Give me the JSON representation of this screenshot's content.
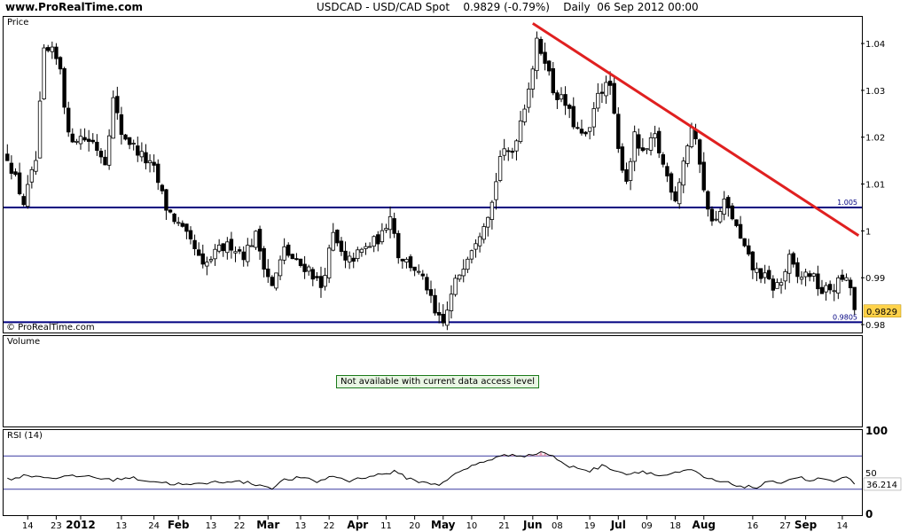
{
  "header": {
    "site": "www.ProRealTime.com",
    "symbol": "USDCAD - USD/CAD Spot",
    "price_change": "0.9829 (-0.79%)",
    "period": "Daily",
    "datetime": "06 Sep 2012 00:00"
  },
  "panels": {
    "price_label": "Price",
    "watermark": "© ProRealTime.com",
    "volume_label": "Volume",
    "volume_notice": "Not available with current data access level",
    "rsi_label": "RSI (14)"
  },
  "colors": {
    "candle": "#000000",
    "support_line": "#000080",
    "trend_line": "#e02020",
    "rsi_line": "#000000",
    "rsi_band": "#3a3aa0",
    "rsi_overbought_fill": "#e8a0b8",
    "last_price_bg": "#ffd24a"
  },
  "chart_data": [
    {
      "type": "candlestick",
      "title": "USDCAD - USD/CAD Spot",
      "y_ticks": [
        "1.04",
        "1.03",
        "1.02",
        "1.01",
        "1",
        "0.99",
        "0.98"
      ],
      "y_tick_values": [
        1.04,
        1.03,
        1.02,
        1.01,
        1.0,
        0.99,
        0.98
      ],
      "ylim": [
        0.9785,
        1.0455
      ],
      "x_ticks": [
        "14",
        "23",
        "2012",
        "13",
        "24",
        "Feb",
        "13",
        "22",
        "Mar",
        "13",
        "22",
        "Apr",
        "11",
        "20",
        "May",
        "10",
        "21",
        "Jun",
        "08",
        "19",
        "Jul",
        "09",
        "18",
        "Aug",
        "16",
        "27",
        "Sep",
        "14"
      ],
      "x_tick_index": [
        5,
        12,
        18,
        28,
        36,
        42,
        50,
        57,
        64,
        72,
        79,
        86,
        93,
        100,
        107,
        114,
        122,
        129,
        135,
        143,
        150,
        157,
        164,
        171,
        183,
        191,
        196,
        205
      ],
      "num_bars": 209,
      "horizontal_lines": [
        {
          "value": 1.005,
          "label": "1.005"
        },
        {
          "value": 0.9805,
          "label": "0.9805"
        }
      ],
      "trend_line": {
        "from": {
          "index": 129,
          "value": 1.0443
        },
        "to": {
          "index": 209,
          "value": 0.999
        }
      },
      "last_price": {
        "value": 0.9829,
        "label": "0.9829"
      },
      "close_path": [
        [
          0,
          1.016
        ],
        [
          4,
          1.006
        ],
        [
          7,
          1.015
        ],
        [
          9,
          1.038
        ],
        [
          11,
          1.038
        ],
        [
          13,
          1.035
        ],
        [
          15,
          1.02
        ],
        [
          18,
          1.02
        ],
        [
          21,
          1.019
        ],
        [
          24,
          1.015
        ],
        [
          26,
          1.028
        ],
        [
          28,
          1.021
        ],
        [
          32,
          1.017
        ],
        [
          36,
          1.013
        ],
        [
          39,
          1.005
        ],
        [
          43,
          1.0
        ],
        [
          46,
          0.996
        ],
        [
          48,
          0.992
        ],
        [
          52,
          0.996
        ],
        [
          55,
          0.997
        ],
        [
          58,
          0.995
        ],
        [
          61,
          0.999
        ],
        [
          63,
          0.993
        ],
        [
          65,
          0.988
        ],
        [
          68,
          0.996
        ],
        [
          71,
          0.993
        ],
        [
          74,
          0.992
        ],
        [
          77,
          0.988
        ],
        [
          80,
          0.999
        ],
        [
          83,
          0.993
        ],
        [
          86,
          0.995
        ],
        [
          89,
          0.997
        ],
        [
          92,
          0.999
        ],
        [
          94,
          1.004
        ],
        [
          96,
          0.995
        ],
        [
          100,
          0.992
        ],
        [
          103,
          0.988
        ],
        [
          105,
          0.982
        ],
        [
          107,
          0.98
        ],
        [
          110,
          0.989
        ],
        [
          113,
          0.995
        ],
        [
          116,
          1.0
        ],
        [
          119,
          1.006
        ],
        [
          121,
          1.016
        ],
        [
          124,
          1.017
        ],
        [
          127,
          1.027
        ],
        [
          129,
          1.035
        ],
        [
          130,
          1.04
        ],
        [
          132,
          1.037
        ],
        [
          134,
          1.03
        ],
        [
          137,
          1.027
        ],
        [
          139,
          1.023
        ],
        [
          141,
          1.02
        ],
        [
          143,
          1.021
        ],
        [
          145,
          1.03
        ],
        [
          148,
          1.031
        ],
        [
          150,
          1.017
        ],
        [
          152,
          1.011
        ],
        [
          154,
          1.02
        ],
        [
          156,
          1.016
        ],
        [
          159,
          1.02
        ],
        [
          161,
          1.014
        ],
        [
          164,
          1.007
        ],
        [
          166,
          1.015
        ],
        [
          168,
          1.022
        ],
        [
          170,
          1.015
        ],
        [
          172,
          1.004
        ],
        [
          174,
          1.002
        ],
        [
          176,
          1.006
        ],
        [
          178,
          1.003
        ],
        [
          180,
          0.998
        ],
        [
          183,
          0.992
        ],
        [
          186,
          0.99
        ],
        [
          188,
          0.988
        ],
        [
          190,
          0.989
        ],
        [
          192,
          0.994
        ],
        [
          194,
          0.99
        ],
        [
          197,
          0.991
        ],
        [
          200,
          0.987
        ],
        [
          203,
          0.988
        ],
        [
          205,
          0.99
        ],
        [
          207,
          0.988
        ],
        [
          208,
          0.9829
        ]
      ]
    },
    {
      "type": "line",
      "title": "RSI (14)",
      "y_ticks": [
        "100",
        "50",
        "0"
      ],
      "y_tick_values": [
        100,
        50,
        0
      ],
      "ylim": [
        0,
        100
      ],
      "bands": [
        70,
        30
      ],
      "last_value": {
        "value": 36.214,
        "label": "36.214"
      },
      "values_path": [
        [
          0,
          42
        ],
        [
          5,
          47
        ],
        [
          10,
          44
        ],
        [
          15,
          45
        ],
        [
          20,
          46
        ],
        [
          25,
          41
        ],
        [
          30,
          44
        ],
        [
          35,
          40
        ],
        [
          40,
          37
        ],
        [
          45,
          35
        ],
        [
          50,
          38
        ],
        [
          55,
          40
        ],
        [
          60,
          37
        ],
        [
          65,
          32
        ],
        [
          68,
          41
        ],
        [
          72,
          44
        ],
        [
          76,
          39
        ],
        [
          80,
          46
        ],
        [
          84,
          40
        ],
        [
          88,
          45
        ],
        [
          92,
          48
        ],
        [
          95,
          51
        ],
        [
          98,
          44
        ],
        [
          102,
          38
        ],
        [
          106,
          36
        ],
        [
          109,
          45
        ],
        [
          112,
          53
        ],
        [
          116,
          62
        ],
        [
          120,
          68
        ],
        [
          124,
          72
        ],
        [
          128,
          70
        ],
        [
          131,
          75
        ],
        [
          134,
          70
        ],
        [
          137,
          58
        ],
        [
          140,
          56
        ],
        [
          143,
          52
        ],
        [
          146,
          58
        ],
        [
          149,
          54
        ],
        [
          152,
          48
        ],
        [
          156,
          52
        ],
        [
          160,
          46
        ],
        [
          164,
          49
        ],
        [
          168,
          53
        ],
        [
          172,
          42
        ],
        [
          176,
          38
        ],
        [
          180,
          34
        ],
        [
          184,
          32
        ],
        [
          186,
          37
        ],
        [
          190,
          39
        ],
        [
          194,
          45
        ],
        [
          197,
          40
        ],
        [
          200,
          43
        ],
        [
          203,
          39
        ],
        [
          206,
          44
        ],
        [
          208,
          36.2
        ]
      ]
    }
  ]
}
